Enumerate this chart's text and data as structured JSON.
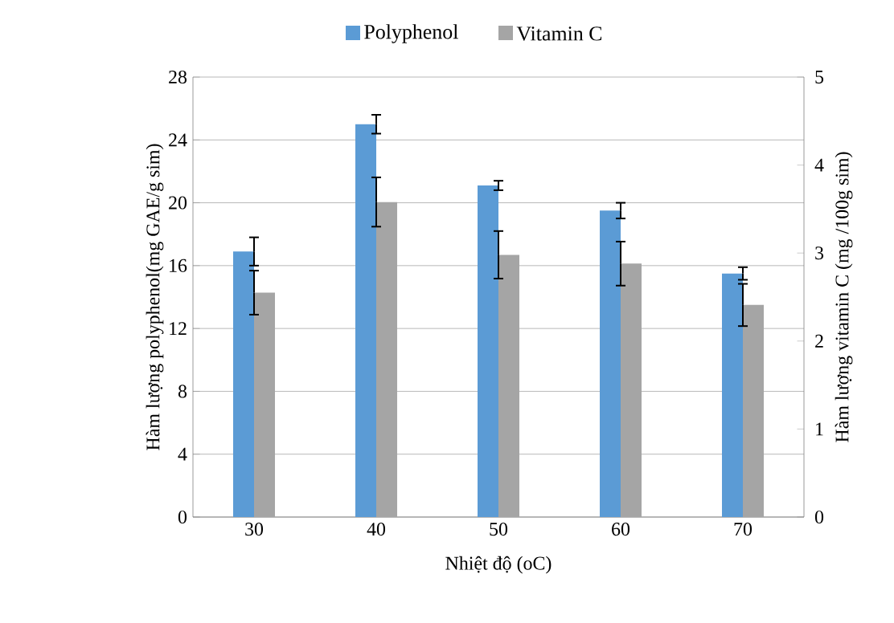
{
  "chart_data": {
    "type": "bar",
    "categories": [
      "30",
      "40",
      "50",
      "60",
      "70"
    ],
    "series": [
      {
        "name": "Polyphenol",
        "color": "#5b9bd5",
        "values": [
          16.9,
          25.0,
          21.1,
          19.5,
          15.5
        ],
        "errors": [
          0.9,
          0.6,
          0.3,
          0.5,
          0.4
        ]
      },
      {
        "name": "Vitamin C",
        "color": "#a5a5a5",
        "axis": "y2",
        "values": [
          2.55,
          3.58,
          2.98,
          2.88,
          2.41
        ],
        "errors": [
          0.25,
          0.28,
          0.27,
          0.25,
          0.24
        ]
      }
    ],
    "xlabel": "Nhiệt độ (oC)",
    "ylabel": "Hàm  lượng polyphenol(mg GAE/g sim)",
    "y2label": "Hàm lượng vitamin C  (mg /100g sim)",
    "ylim": [
      0,
      28
    ],
    "yticks": [
      0,
      4,
      8,
      12,
      16,
      20,
      24,
      28
    ],
    "y2lim": [
      0,
      5
    ],
    "y2ticks": [
      0,
      1,
      2,
      3,
      4,
      5
    ],
    "grid": "y",
    "legend": "top"
  }
}
